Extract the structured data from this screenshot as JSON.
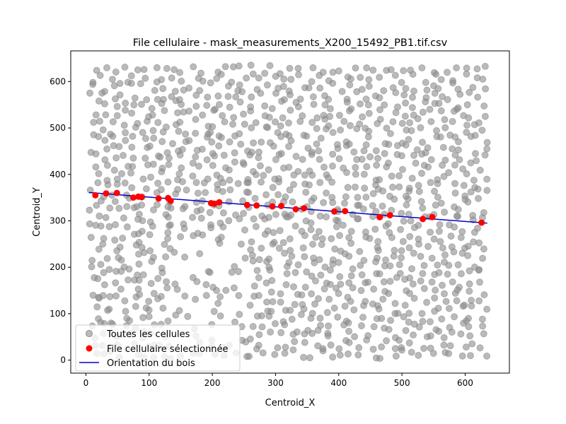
{
  "chart_data": {
    "type": "scatter",
    "title": "File cellulaire - mask_measurements_X200_15492_PB1.tif.csv",
    "xlabel": "Centroid_X",
    "ylabel": "Centroid_Y",
    "xlim": [
      -24,
      670
    ],
    "ylim": [
      -28,
      666
    ],
    "xticks": [
      0,
      100,
      200,
      300,
      400,
      500,
      600
    ],
    "yticks": [
      0,
      100,
      200,
      300,
      400,
      500,
      600
    ],
    "grid": false,
    "legend": "lower-left",
    "colors": {
      "all": "#8c8c8c",
      "selected": "#ff0000",
      "orientation": "#0000cd"
    },
    "series": [
      {
        "name": "Toutes les cellules",
        "kind": "scatter",
        "x_range": [
          5,
          635
        ],
        "y_range": [
          3,
          636
        ],
        "count": 1300
      },
      {
        "name": "File cellulaire sélectionnée",
        "kind": "scatter",
        "points": [
          [
            15,
            355
          ],
          [
            32,
            359
          ],
          [
            49,
            360
          ],
          [
            75,
            350
          ],
          [
            83,
            352
          ],
          [
            88,
            351
          ],
          [
            115,
            348
          ],
          [
            130,
            349
          ],
          [
            134,
            343
          ],
          [
            198,
            338
          ],
          [
            203,
            337
          ],
          [
            211,
            340
          ],
          [
            255,
            334
          ],
          [
            270,
            333
          ],
          [
            295,
            331
          ],
          [
            309,
            332
          ],
          [
            332,
            325
          ],
          [
            345,
            327
          ],
          [
            393,
            320
          ],
          [
            410,
            321
          ],
          [
            465,
            308
          ],
          [
            481,
            312
          ],
          [
            533,
            304
          ],
          [
            548,
            308
          ],
          [
            626,
            296
          ]
        ]
      },
      {
        "name": "Orientation du bois",
        "kind": "line",
        "points": [
          [
            5,
            361
          ],
          [
            635,
            295
          ]
        ]
      }
    ]
  }
}
